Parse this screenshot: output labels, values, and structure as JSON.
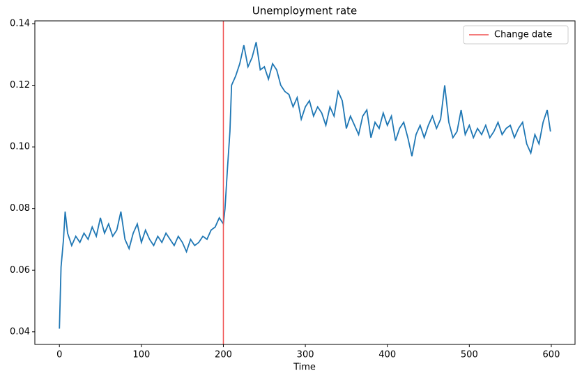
{
  "chart_data": {
    "type": "line",
    "title": "Unemployment rate",
    "xlabel": "Time",
    "x": [
      0,
      2,
      5,
      7,
      10,
      15,
      20,
      25,
      30,
      35,
      40,
      45,
      50,
      55,
      60,
      65,
      70,
      75,
      80,
      85,
      90,
      95,
      100,
      105,
      110,
      115,
      120,
      125,
      130,
      135,
      140,
      145,
      150,
      155,
      160,
      165,
      170,
      175,
      180,
      185,
      190,
      195,
      200,
      202,
      205,
      208,
      210,
      215,
      220,
      225,
      230,
      235,
      240,
      245,
      250,
      255,
      260,
      265,
      270,
      275,
      280,
      285,
      290,
      295,
      300,
      305,
      310,
      315,
      320,
      325,
      330,
      335,
      340,
      345,
      350,
      355,
      360,
      365,
      370,
      375,
      380,
      385,
      390,
      395,
      400,
      405,
      410,
      415,
      420,
      425,
      430,
      435,
      440,
      445,
      450,
      455,
      460,
      465,
      470,
      475,
      480,
      485,
      490,
      495,
      500,
      505,
      510,
      515,
      520,
      525,
      530,
      535,
      540,
      545,
      550,
      555,
      560,
      565,
      570,
      575,
      580,
      585,
      590,
      595,
      599
    ],
    "series": [
      {
        "color": "#1f77b4",
        "values": [
          0.041,
          0.061,
          0.07,
          0.079,
          0.072,
          0.068,
          0.071,
          0.069,
          0.072,
          0.07,
          0.074,
          0.071,
          0.077,
          0.072,
          0.075,
          0.071,
          0.073,
          0.079,
          0.07,
          0.067,
          0.072,
          0.075,
          0.069,
          0.073,
          0.07,
          0.068,
          0.071,
          0.069,
          0.072,
          0.07,
          0.068,
          0.071,
          0.069,
          0.066,
          0.07,
          0.068,
          0.069,
          0.071,
          0.07,
          0.073,
          0.074,
          0.077,
          0.075,
          0.08,
          0.093,
          0.105,
          0.12,
          0.123,
          0.127,
          0.133,
          0.126,
          0.129,
          0.134,
          0.125,
          0.126,
          0.122,
          0.127,
          0.125,
          0.12,
          0.118,
          0.117,
          0.113,
          0.116,
          0.109,
          0.113,
          0.115,
          0.11,
          0.113,
          0.111,
          0.107,
          0.113,
          0.11,
          0.118,
          0.115,
          0.106,
          0.11,
          0.107,
          0.104,
          0.11,
          0.112,
          0.103,
          0.108,
          0.106,
          0.111,
          0.107,
          0.11,
          0.102,
          0.106,
          0.108,
          0.103,
          0.097,
          0.104,
          0.107,
          0.103,
          0.107,
          0.11,
          0.106,
          0.109,
          0.12,
          0.108,
          0.103,
          0.105,
          0.112,
          0.104,
          0.107,
          0.103,
          0.106,
          0.104,
          0.107,
          0.103,
          0.105,
          0.108,
          0.104,
          0.106,
          0.107,
          0.103,
          0.106,
          0.108,
          0.101,
          0.098,
          0.104,
          0.101,
          0.108,
          0.112,
          0.105
        ]
      }
    ],
    "vline": {
      "x": 200,
      "name": "Change date",
      "color": "#f05050"
    },
    "legend": "upper right",
    "xlim": [
      -29.95,
      628.95
    ],
    "xticks": [
      0,
      100,
      200,
      300,
      400,
      500,
      600
    ],
    "ylim": [
      0.0359,
      0.1409
    ],
    "yticks": [
      0.04,
      0.06,
      0.08,
      {
        "value": 0.1,
        "label": "0.10"
      },
      0.12,
      0.14
    ]
  }
}
